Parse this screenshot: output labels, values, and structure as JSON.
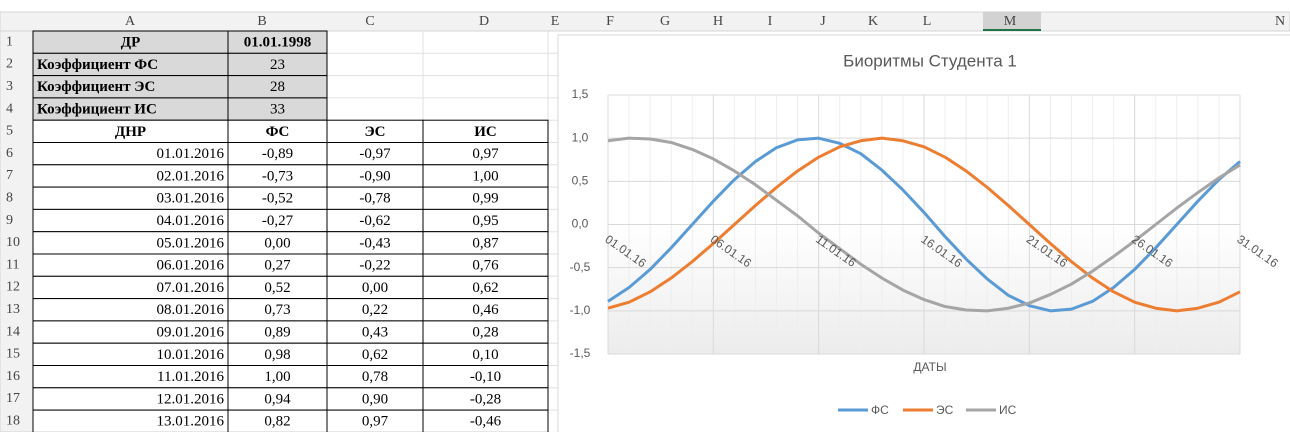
{
  "sheet": {
    "columns": [
      "A",
      "B",
      "C",
      "D",
      "E",
      "F",
      "G",
      "H",
      "I",
      "J",
      "K",
      "L",
      "M",
      "N"
    ],
    "row_numbers": [
      1,
      2,
      3,
      4,
      5,
      6,
      7,
      8,
      9,
      10,
      11,
      12,
      13,
      14,
      15,
      16,
      17,
      18
    ]
  },
  "table": {
    "rows": [
      [
        "ДР",
        "01.01.1998"
      ],
      [
        "Коэффициент ФС",
        "23"
      ],
      [
        "Коэффициент ЭС",
        "28"
      ],
      [
        "Коэффициент ИС",
        "33"
      ],
      [
        "ДНР",
        "ФС",
        "ЭС",
        "ИС"
      ],
      [
        "01.01.2016",
        "-0,89",
        "-0,97",
        "0,97"
      ],
      [
        "02.01.2016",
        "-0,73",
        "-0,90",
        "1,00"
      ],
      [
        "03.01.2016",
        "-0,52",
        "-0,78",
        "0,99"
      ],
      [
        "04.01.2016",
        "-0,27",
        "-0,62",
        "0,95"
      ],
      [
        "05.01.2016",
        "0,00",
        "-0,43",
        "0,87"
      ],
      [
        "06.01.2016",
        "0,27",
        "-0,22",
        "0,76"
      ],
      [
        "07.01.2016",
        "0,52",
        "0,00",
        "0,62"
      ],
      [
        "08.01.2016",
        "0,73",
        "0,22",
        "0,46"
      ],
      [
        "09.01.2016",
        "0,89",
        "0,43",
        "0,28"
      ],
      [
        "10.01.2016",
        "0,98",
        "0,62",
        "0,10"
      ],
      [
        "11.01.2016",
        "1,00",
        "0,78",
        "-0,10"
      ],
      [
        "12.01.2016",
        "0,94",
        "0,90",
        "-0,28"
      ],
      [
        "13.01.2016",
        "0,82",
        "0,97",
        "-0,46"
      ]
    ]
  },
  "chart_data": {
    "type": "line",
    "title": "Биоритмы Студента 1",
    "x_label": "ДАТЫ",
    "categories": [
      "01.01.16",
      null,
      null,
      null,
      null,
      "06.01.16",
      null,
      null,
      null,
      null,
      "11.01.16",
      null,
      null,
      null,
      null,
      "16.01.16",
      null,
      null,
      null,
      null,
      "21.01.16",
      null,
      null,
      null,
      null,
      "26.01.16",
      null,
      null,
      null,
      null,
      "31.01.16"
    ],
    "series": [
      {
        "name": "ФС",
        "color": "#5b9bd5",
        "values": [
          -0.89,
          -0.73,
          -0.52,
          -0.27,
          0.0,
          0.27,
          0.52,
          0.73,
          0.89,
          0.98,
          1.0,
          0.94,
          0.82,
          0.63,
          0.4,
          0.14,
          -0.14,
          -0.4,
          -0.63,
          -0.82,
          -0.94,
          -1.0,
          -0.98,
          -0.89,
          -0.73,
          -0.52,
          -0.27,
          0.0,
          0.27,
          0.52,
          0.73
        ]
      },
      {
        "name": "ЭС",
        "color": "#ed7d31",
        "values": [
          -0.97,
          -0.9,
          -0.78,
          -0.62,
          -0.43,
          -0.22,
          0.0,
          0.22,
          0.43,
          0.62,
          0.78,
          0.9,
          0.97,
          1.0,
          0.97,
          0.9,
          0.78,
          0.62,
          0.43,
          0.22,
          0.0,
          -0.22,
          -0.43,
          -0.62,
          -0.78,
          -0.9,
          -0.97,
          -1.0,
          -0.97,
          -0.9,
          -0.78
        ]
      },
      {
        "name": "ИС",
        "color": "#a5a5a5",
        "values": [
          0.97,
          1.0,
          0.99,
          0.95,
          0.87,
          0.76,
          0.62,
          0.46,
          0.28,
          0.1,
          -0.1,
          -0.28,
          -0.46,
          -0.62,
          -0.76,
          -0.87,
          -0.95,
          -0.99,
          -1.0,
          -0.97,
          -0.91,
          -0.81,
          -0.69,
          -0.54,
          -0.37,
          -0.19,
          0.0,
          0.19,
          0.37,
          0.54,
          0.69
        ]
      }
    ],
    "ylim": [
      -1.5,
      1.5
    ],
    "yticks": [
      {
        "value": -1.5,
        "label": "-1,5"
      },
      {
        "value": -1,
        "label": "-1,0"
      },
      {
        "value": -0.5,
        "label": "-0,5"
      },
      {
        "value": 0,
        "label": "0,0"
      },
      {
        "value": 0.5,
        "label": "0,5"
      },
      {
        "value": 1,
        "label": "1,0"
      },
      {
        "value": 1.5,
        "label": "1,5"
      }
    ],
    "grid": true,
    "legend": "bottom"
  }
}
